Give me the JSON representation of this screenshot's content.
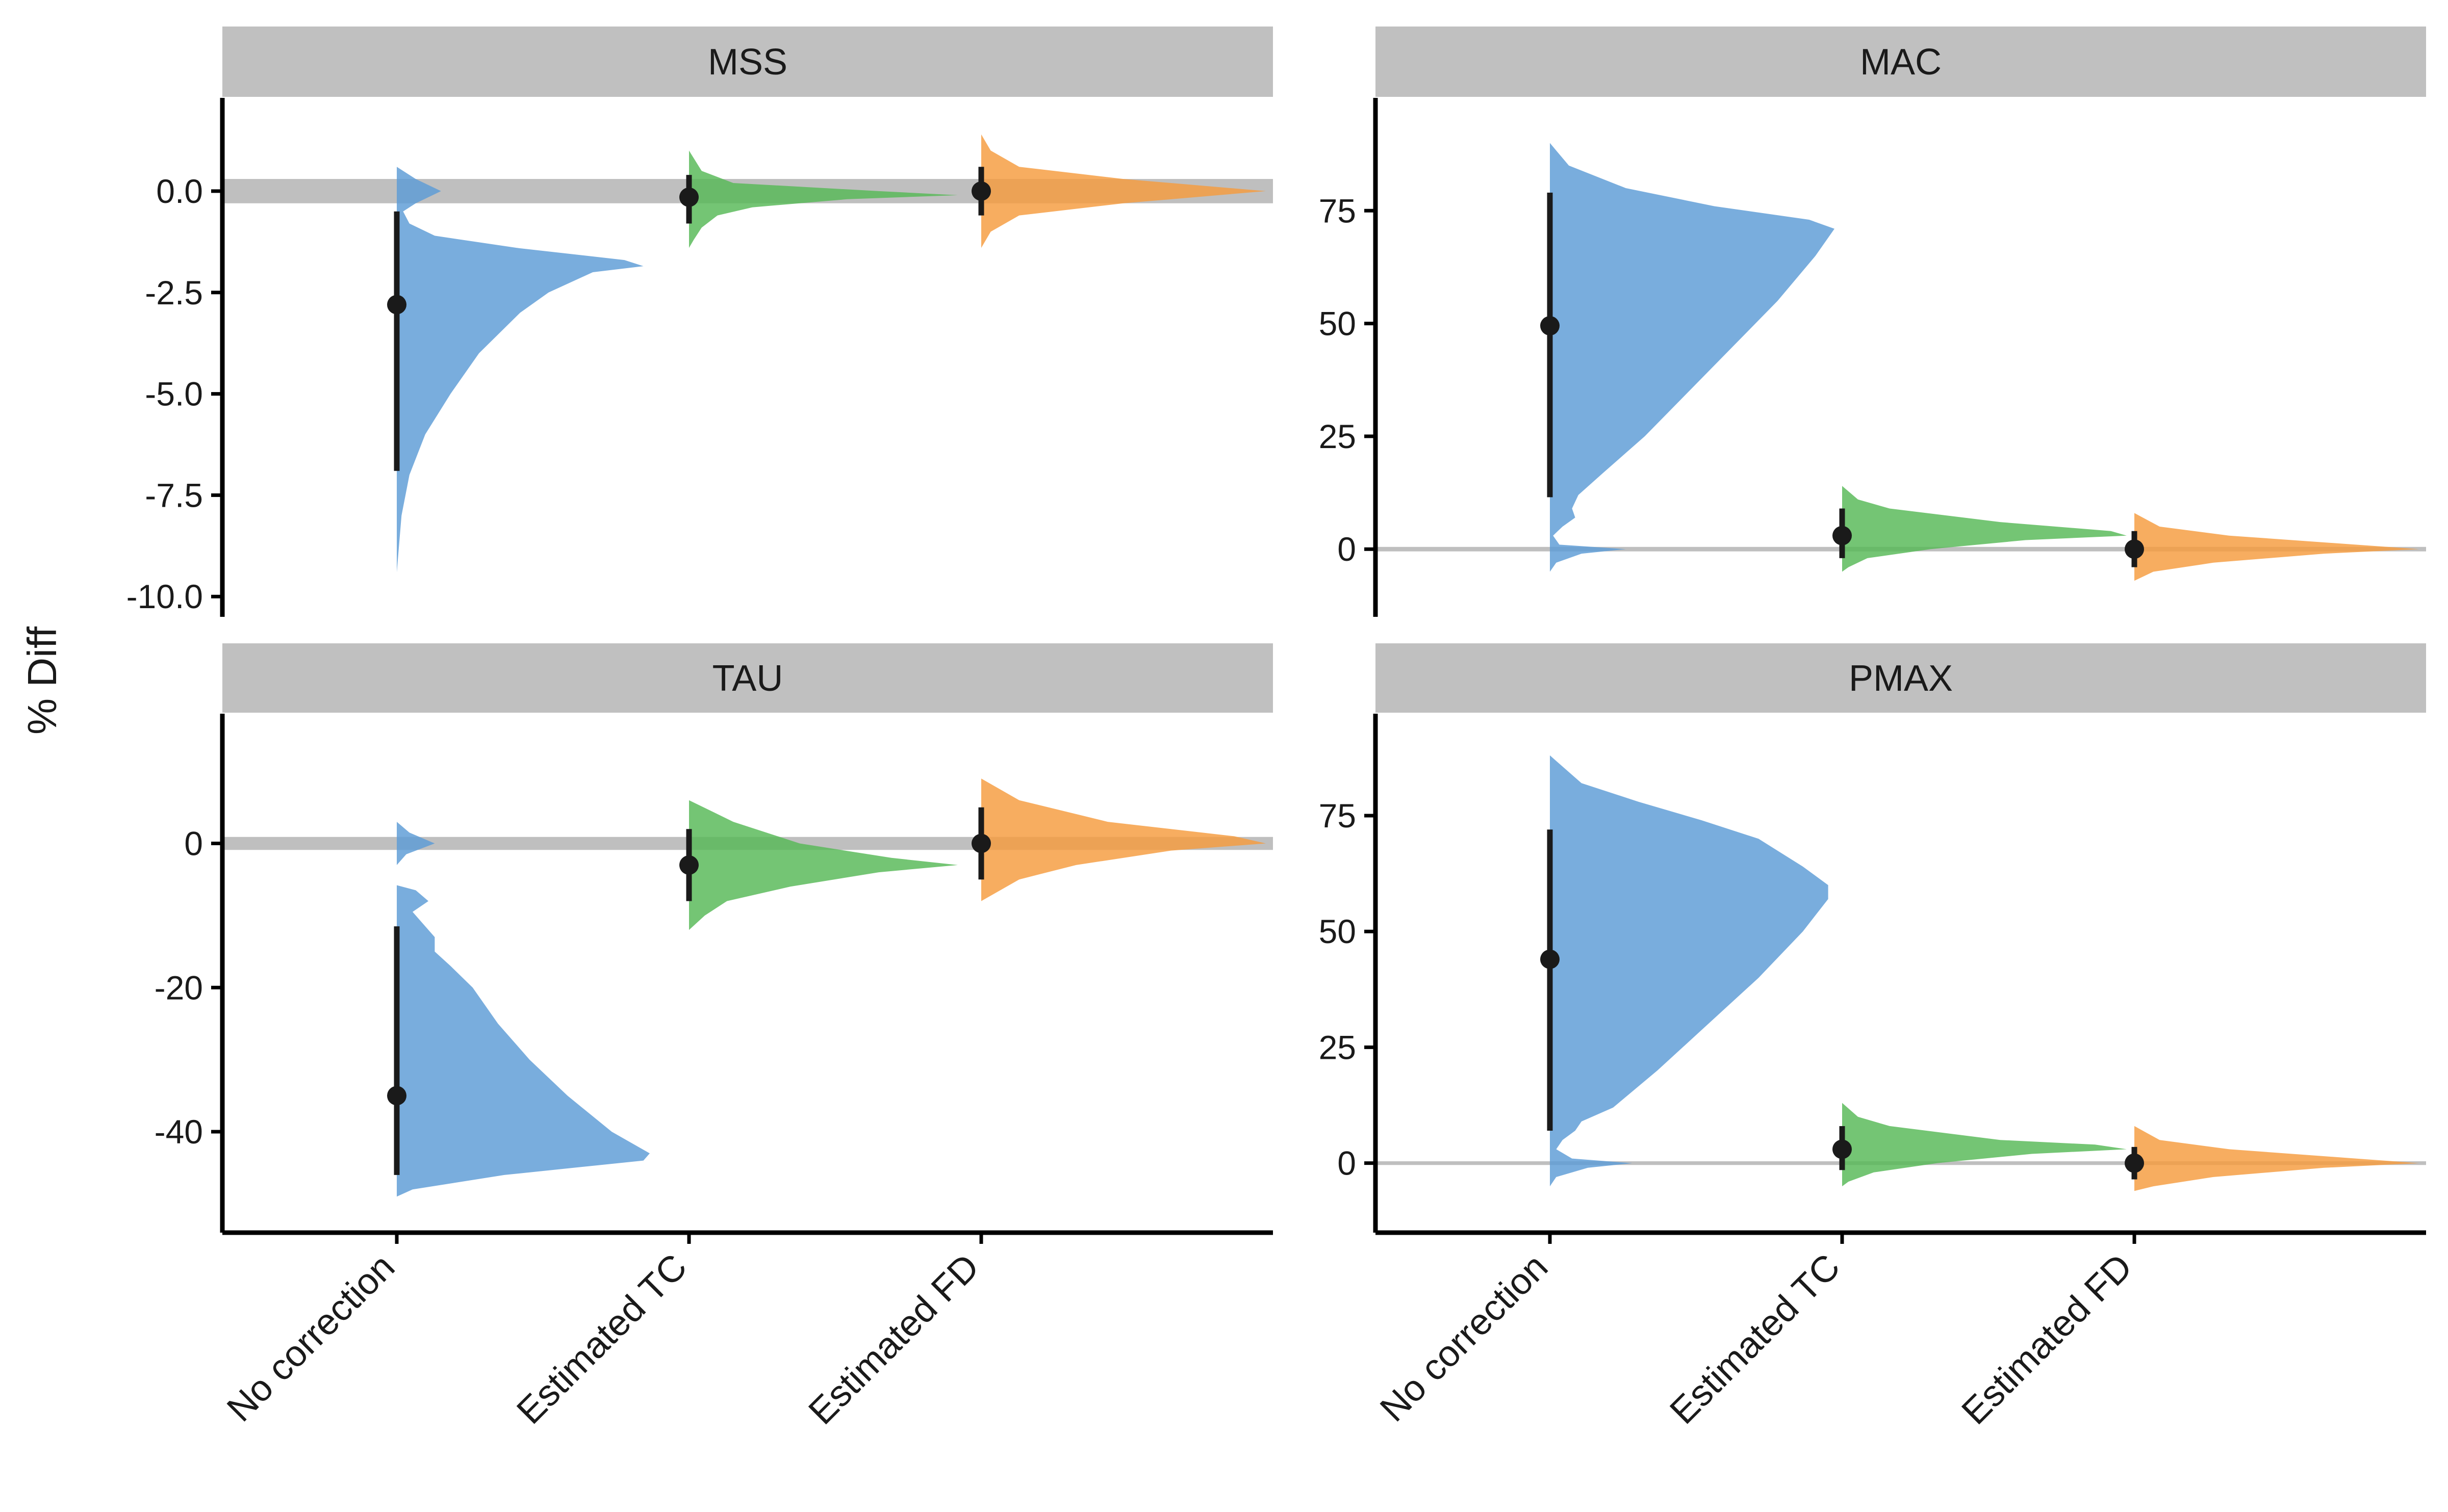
{
  "chart_data": {
    "type": "raincloud",
    "ylabel": "% Diff",
    "categories": [
      "No correction",
      "Estimated TC",
      "Estimated FD"
    ],
    "colors": {
      "No correction": "#5b9bd5",
      "Estimated TC": "#55b855",
      "Estimated FD": "#f59b3d",
      "panel_strip": "#c0c0c0",
      "reference_band": "#bfbfbf",
      "point": "#1a1a1a"
    },
    "panels": [
      {
        "title": "MSS",
        "ylim": [
          -10.5,
          2.3
        ],
        "yticks": [
          0.0,
          -2.5,
          -5.0,
          -7.5,
          -10.0
        ],
        "ytick_labels": [
          "0.0",
          "-2.5",
          "-5.0",
          "-7.5",
          "-10.0"
        ],
        "reference_band": [
          -0.3,
          0.3
        ],
        "series": [
          {
            "category": "No correction",
            "median": -2.8,
            "interval": [
              -6.9,
              -0.5
            ],
            "density": [
              [
                0.6,
                0.0
              ],
              [
                0.3,
                0.06
              ],
              [
                0.0,
                0.14
              ],
              [
                -0.3,
                0.06
              ],
              [
                -0.5,
                0.02
              ],
              [
                -0.8,
                0.04
              ],
              [
                -1.1,
                0.12
              ],
              [
                -1.4,
                0.38
              ],
              [
                -1.7,
                0.72
              ],
              [
                -1.85,
                0.78
              ],
              [
                -2.0,
                0.62
              ],
              [
                -2.5,
                0.48
              ],
              [
                -3.0,
                0.39
              ],
              [
                -4.0,
                0.26
              ],
              [
                -5.0,
                0.17
              ],
              [
                -6.0,
                0.09
              ],
              [
                -7.0,
                0.04
              ],
              [
                -8.0,
                0.015
              ],
              [
                -9.4,
                0.0
              ]
            ]
          },
          {
            "category": "Estimated TC",
            "median": -0.15,
            "interval": [
              -0.8,
              0.4
            ],
            "density": [
              [
                1.0,
                0.0
              ],
              [
                0.5,
                0.04
              ],
              [
                0.2,
                0.14
              ],
              [
                0.0,
                0.6
              ],
              [
                -0.1,
                0.85
              ],
              [
                -0.2,
                0.5
              ],
              [
                -0.4,
                0.2
              ],
              [
                -0.6,
                0.09
              ],
              [
                -0.9,
                0.04
              ],
              [
                -1.2,
                0.015
              ],
              [
                -1.4,
                0.0
              ]
            ]
          },
          {
            "category": "Estimated FD",
            "median": 0.0,
            "interval": [
              -0.6,
              0.6
            ],
            "density": [
              [
                1.4,
                0.0
              ],
              [
                1.0,
                0.03
              ],
              [
                0.6,
                0.12
              ],
              [
                0.3,
                0.45
              ],
              [
                0.0,
                0.9
              ],
              [
                -0.3,
                0.45
              ],
              [
                -0.6,
                0.12
              ],
              [
                -1.0,
                0.03
              ],
              [
                -1.4,
                0.0
              ]
            ]
          }
        ]
      },
      {
        "title": "MAC",
        "ylim": [
          -15,
          100
        ],
        "yticks": [
          75,
          50,
          25,
          0
        ],
        "ytick_labels": [
          "75",
          "50",
          "25",
          "0"
        ],
        "reference_band": [
          -0.5,
          0.5
        ],
        "series": [
          {
            "category": "No correction",
            "median": 49.5,
            "interval": [
              11.5,
              79.0
            ],
            "density": [
              [
                90,
                0.0
              ],
              [
                85,
                0.06
              ],
              [
                80,
                0.24
              ],
              [
                76,
                0.52
              ],
              [
                73,
                0.82
              ],
              [
                71,
                0.9
              ],
              [
                65,
                0.84
              ],
              [
                55,
                0.72
              ],
              [
                45,
                0.58
              ],
              [
                35,
                0.44
              ],
              [
                25,
                0.3
              ],
              [
                17,
                0.17
              ],
              [
                12,
                0.09
              ],
              [
                9,
                0.07
              ],
              [
                7,
                0.08
              ],
              [
                5,
                0.04
              ],
              [
                3,
                0.01
              ],
              [
                1,
                0.03
              ],
              [
                0,
                0.24
              ],
              [
                -1,
                0.1
              ],
              [
                -3,
                0.02
              ],
              [
                -5,
                0.0
              ]
            ]
          },
          {
            "category": "Estimated TC",
            "median": 3.0,
            "interval": [
              -2.0,
              9.0
            ],
            "density": [
              [
                14,
                0.0
              ],
              [
                11,
                0.05
              ],
              [
                9,
                0.15
              ],
              [
                6,
                0.5
              ],
              [
                4,
                0.85
              ],
              [
                3,
                0.9
              ],
              [
                2,
                0.58
              ],
              [
                0,
                0.28
              ],
              [
                -2,
                0.08
              ],
              [
                -4,
                0.02
              ],
              [
                -5,
                0.0
              ]
            ]
          },
          {
            "category": "Estimated FD",
            "median": 0.0,
            "interval": [
              -4.0,
              4.0
            ],
            "density": [
              [
                8,
                0.0
              ],
              [
                5,
                0.08
              ],
              [
                3,
                0.3
              ],
              [
                1,
                0.7
              ],
              [
                0,
                0.9
              ],
              [
                -1,
                0.6
              ],
              [
                -3,
                0.25
              ],
              [
                -5,
                0.06
              ],
              [
                -7,
                0.0
              ]
            ]
          }
        ]
      },
      {
        "title": "TAU",
        "ylim": [
          -54,
          18
        ],
        "yticks": [
          0,
          -20,
          -40
        ],
        "ytick_labels": [
          "0",
          "-20",
          "-40"
        ],
        "reference_band": [
          -0.9,
          0.9
        ],
        "series": [
          {
            "category": "No correction",
            "median": -35.0,
            "interval": [
              -46.0,
              -11.5
            ],
            "density": [
              [
                3,
                0.0
              ],
              [
                1.5,
                0.04
              ],
              [
                0,
                0.12
              ],
              [
                -1.5,
                0.03
              ],
              [
                -3,
                0.0
              ],
              [
                -5.8,
                0.0
              ],
              [
                -6.5,
                0.06
              ],
              [
                -8,
                0.1
              ],
              [
                -9.5,
                0.05
              ],
              [
                -11,
                0.08
              ],
              [
                -13,
                0.12
              ],
              [
                -15,
                0.12
              ],
              [
                -17,
                0.17
              ],
              [
                -20,
                0.24
              ],
              [
                -25,
                0.32
              ],
              [
                -30,
                0.42
              ],
              [
                -35,
                0.54
              ],
              [
                -40,
                0.68
              ],
              [
                -43,
                0.8
              ],
              [
                -44,
                0.78
              ],
              [
                -46,
                0.34
              ],
              [
                -48,
                0.05
              ],
              [
                -49,
                0.0
              ]
            ]
          },
          {
            "category": "Estimated TC",
            "median": -3.0,
            "interval": [
              -8.0,
              2.0
            ],
            "density": [
              [
                6,
                0.0
              ],
              [
                3,
                0.14
              ],
              [
                0,
                0.35
              ],
              [
                -2,
                0.64
              ],
              [
                -3,
                0.85
              ],
              [
                -4,
                0.6
              ],
              [
                -6,
                0.32
              ],
              [
                -8,
                0.12
              ],
              [
                -10,
                0.05
              ],
              [
                -12,
                0.0
              ]
            ]
          },
          {
            "category": "Estimated FD",
            "median": 0.0,
            "interval": [
              -5.0,
              5.0
            ],
            "density": [
              [
                9,
                0.0
              ],
              [
                6,
                0.12
              ],
              [
                3,
                0.4
              ],
              [
                1,
                0.8
              ],
              [
                0,
                0.9
              ],
              [
                -1,
                0.6
              ],
              [
                -3,
                0.3
              ],
              [
                -5,
                0.12
              ],
              [
                -7,
                0.04
              ],
              [
                -8,
                0.0
              ]
            ]
          }
        ]
      },
      {
        "title": "PMAX",
        "ylim": [
          -15,
          97
        ],
        "yticks": [
          75,
          50,
          25,
          0
        ],
        "ytick_labels": [
          "75",
          "50",
          "25",
          "0"
        ],
        "reference_band": [
          -0.4,
          0.4
        ],
        "series": [
          {
            "category": "No correction",
            "median": 44.0,
            "interval": [
              7.0,
              72.0
            ],
            "density": [
              [
                88,
                0.0
              ],
              [
                82,
                0.1
              ],
              [
                78,
                0.28
              ],
              [
                74,
                0.48
              ],
              [
                70,
                0.66
              ],
              [
                64,
                0.8
              ],
              [
                60,
                0.88
              ],
              [
                57,
                0.88
              ],
              [
                50,
                0.8
              ],
              [
                40,
                0.66
              ],
              [
                30,
                0.5
              ],
              [
                20,
                0.34
              ],
              [
                12,
                0.2
              ],
              [
                9,
                0.1
              ],
              [
                7,
                0.08
              ],
              [
                5,
                0.04
              ],
              [
                3,
                0.02
              ],
              [
                1,
                0.07
              ],
              [
                0,
                0.26
              ],
              [
                -1,
                0.12
              ],
              [
                -3,
                0.02
              ],
              [
                -5,
                0.0
              ]
            ]
          },
          {
            "category": "Estimated TC",
            "median": 3.0,
            "interval": [
              -1.5,
              8.0
            ],
            "density": [
              [
                13,
                0.0
              ],
              [
                10,
                0.05
              ],
              [
                8,
                0.15
              ],
              [
                5,
                0.5
              ],
              [
                4,
                0.8
              ],
              [
                3,
                0.9
              ],
              [
                2,
                0.6
              ],
              [
                0,
                0.3
              ],
              [
                -2,
                0.1
              ],
              [
                -4,
                0.02
              ],
              [
                -5,
                0.0
              ]
            ]
          },
          {
            "category": "Estimated FD",
            "median": 0.0,
            "interval": [
              -3.5,
              3.5
            ],
            "density": [
              [
                8,
                0.0
              ],
              [
                5,
                0.08
              ],
              [
                3,
                0.3
              ],
              [
                1,
                0.7
              ],
              [
                0,
                0.9
              ],
              [
                -1,
                0.6
              ],
              [
                -3,
                0.25
              ],
              [
                -5,
                0.06
              ],
              [
                -6,
                0.0
              ]
            ]
          }
        ]
      }
    ]
  }
}
